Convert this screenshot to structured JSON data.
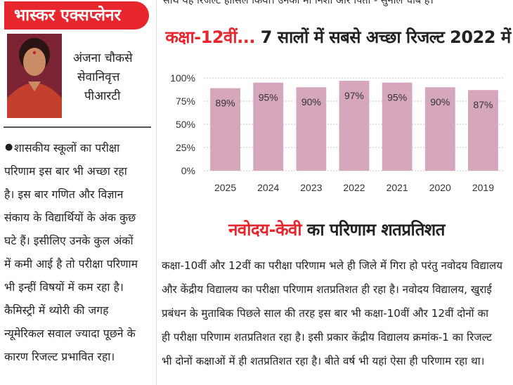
{
  "banner": {
    "label": "भास्कर एक्सप्लेनर"
  },
  "author": {
    "name": "अंजना चौकसे",
    "role": "सेवानिवृत्त",
    "title": "पीआरटी"
  },
  "left_column": {
    "lines": [
      "शासकीय स्कूलों का परीक्षा",
      "परिणाम इस बार भी अच्छा रहा",
      "है। इस बार गणित और विज्ञान",
      "संकाय के विद्यार्थियों के अंक कुछ",
      "घटे हैं। इसीलिए उनके कुल अंकों",
      "में कमी आई है तो परीक्षा परिणाम",
      "भी इन्हीं विषयों में कम रहा है।",
      "कैमिस्ट्री में थ्योरी की जगह",
      "न्यूमेरिकल सवाल ज्यादा पूछने के",
      "कारण रिजल्ट प्रभावित रहा।"
    ]
  },
  "top_text": "साथ यह रिजल्ट हासिल किया। उनकी मां निशा और पिता - सुनील चौबे हैं।",
  "chart_heading": {
    "highlight": "कक्षा-12वीं...",
    "rest": " 7 सालों में सबसे अच्छा रिजल्ट 2022 में"
  },
  "chart_data": {
    "type": "bar",
    "categories": [
      "2025",
      "2024",
      "2023",
      "2022",
      "2021",
      "2020",
      "2019"
    ],
    "values": [
      89,
      95,
      90,
      97,
      95,
      90,
      87
    ],
    "value_labels": [
      "89%",
      "95%",
      "90%",
      "97%",
      "95%",
      "90%",
      "87%"
    ],
    "y_ticks": [
      100,
      75,
      50,
      25,
      0
    ],
    "y_tick_labels": [
      "100%",
      "75%",
      "50%",
      "25%",
      "0%"
    ],
    "ylim": [
      0,
      100
    ],
    "grid": true,
    "bar_color": "#d6a6bd",
    "grid_color": "#c8c8c8"
  },
  "section_heading": {
    "highlight": "नवोदय-केवी",
    "rest": " का परिणाम शतप्रतिशत"
  },
  "body": {
    "lines": [
      "कक्षा-10वीं और 12वीं का परीक्षा परिणाम भले ही जिले में गिरा हो परंतु नवोदय विद्यालय",
      "और केंद्रीय विद्यालय का परीक्षा परिणाम शतप्रतिशत ही रहा है। नवोदय विद्यालय, खुराई",
      "प्रबंधन के मुताबिक पिछले साल की तरह इस बार भी कक्षा-10वीं और 12वीं दोनों का",
      "ही परीक्षा परिणाम शतप्रतिशत रहा है। इसी प्रकार केंद्रीय विद्यालय क्रमांक-1 का रिजल्ट",
      "भी दोनों कक्षाओं में ही शतप्रतिशत रहा है। बीते वर्ष भी यहां ऐसा ही परिणाम रहा था।"
    ]
  },
  "colors": {
    "accent": "#e8262d",
    "bar": "#d6a6bd"
  }
}
